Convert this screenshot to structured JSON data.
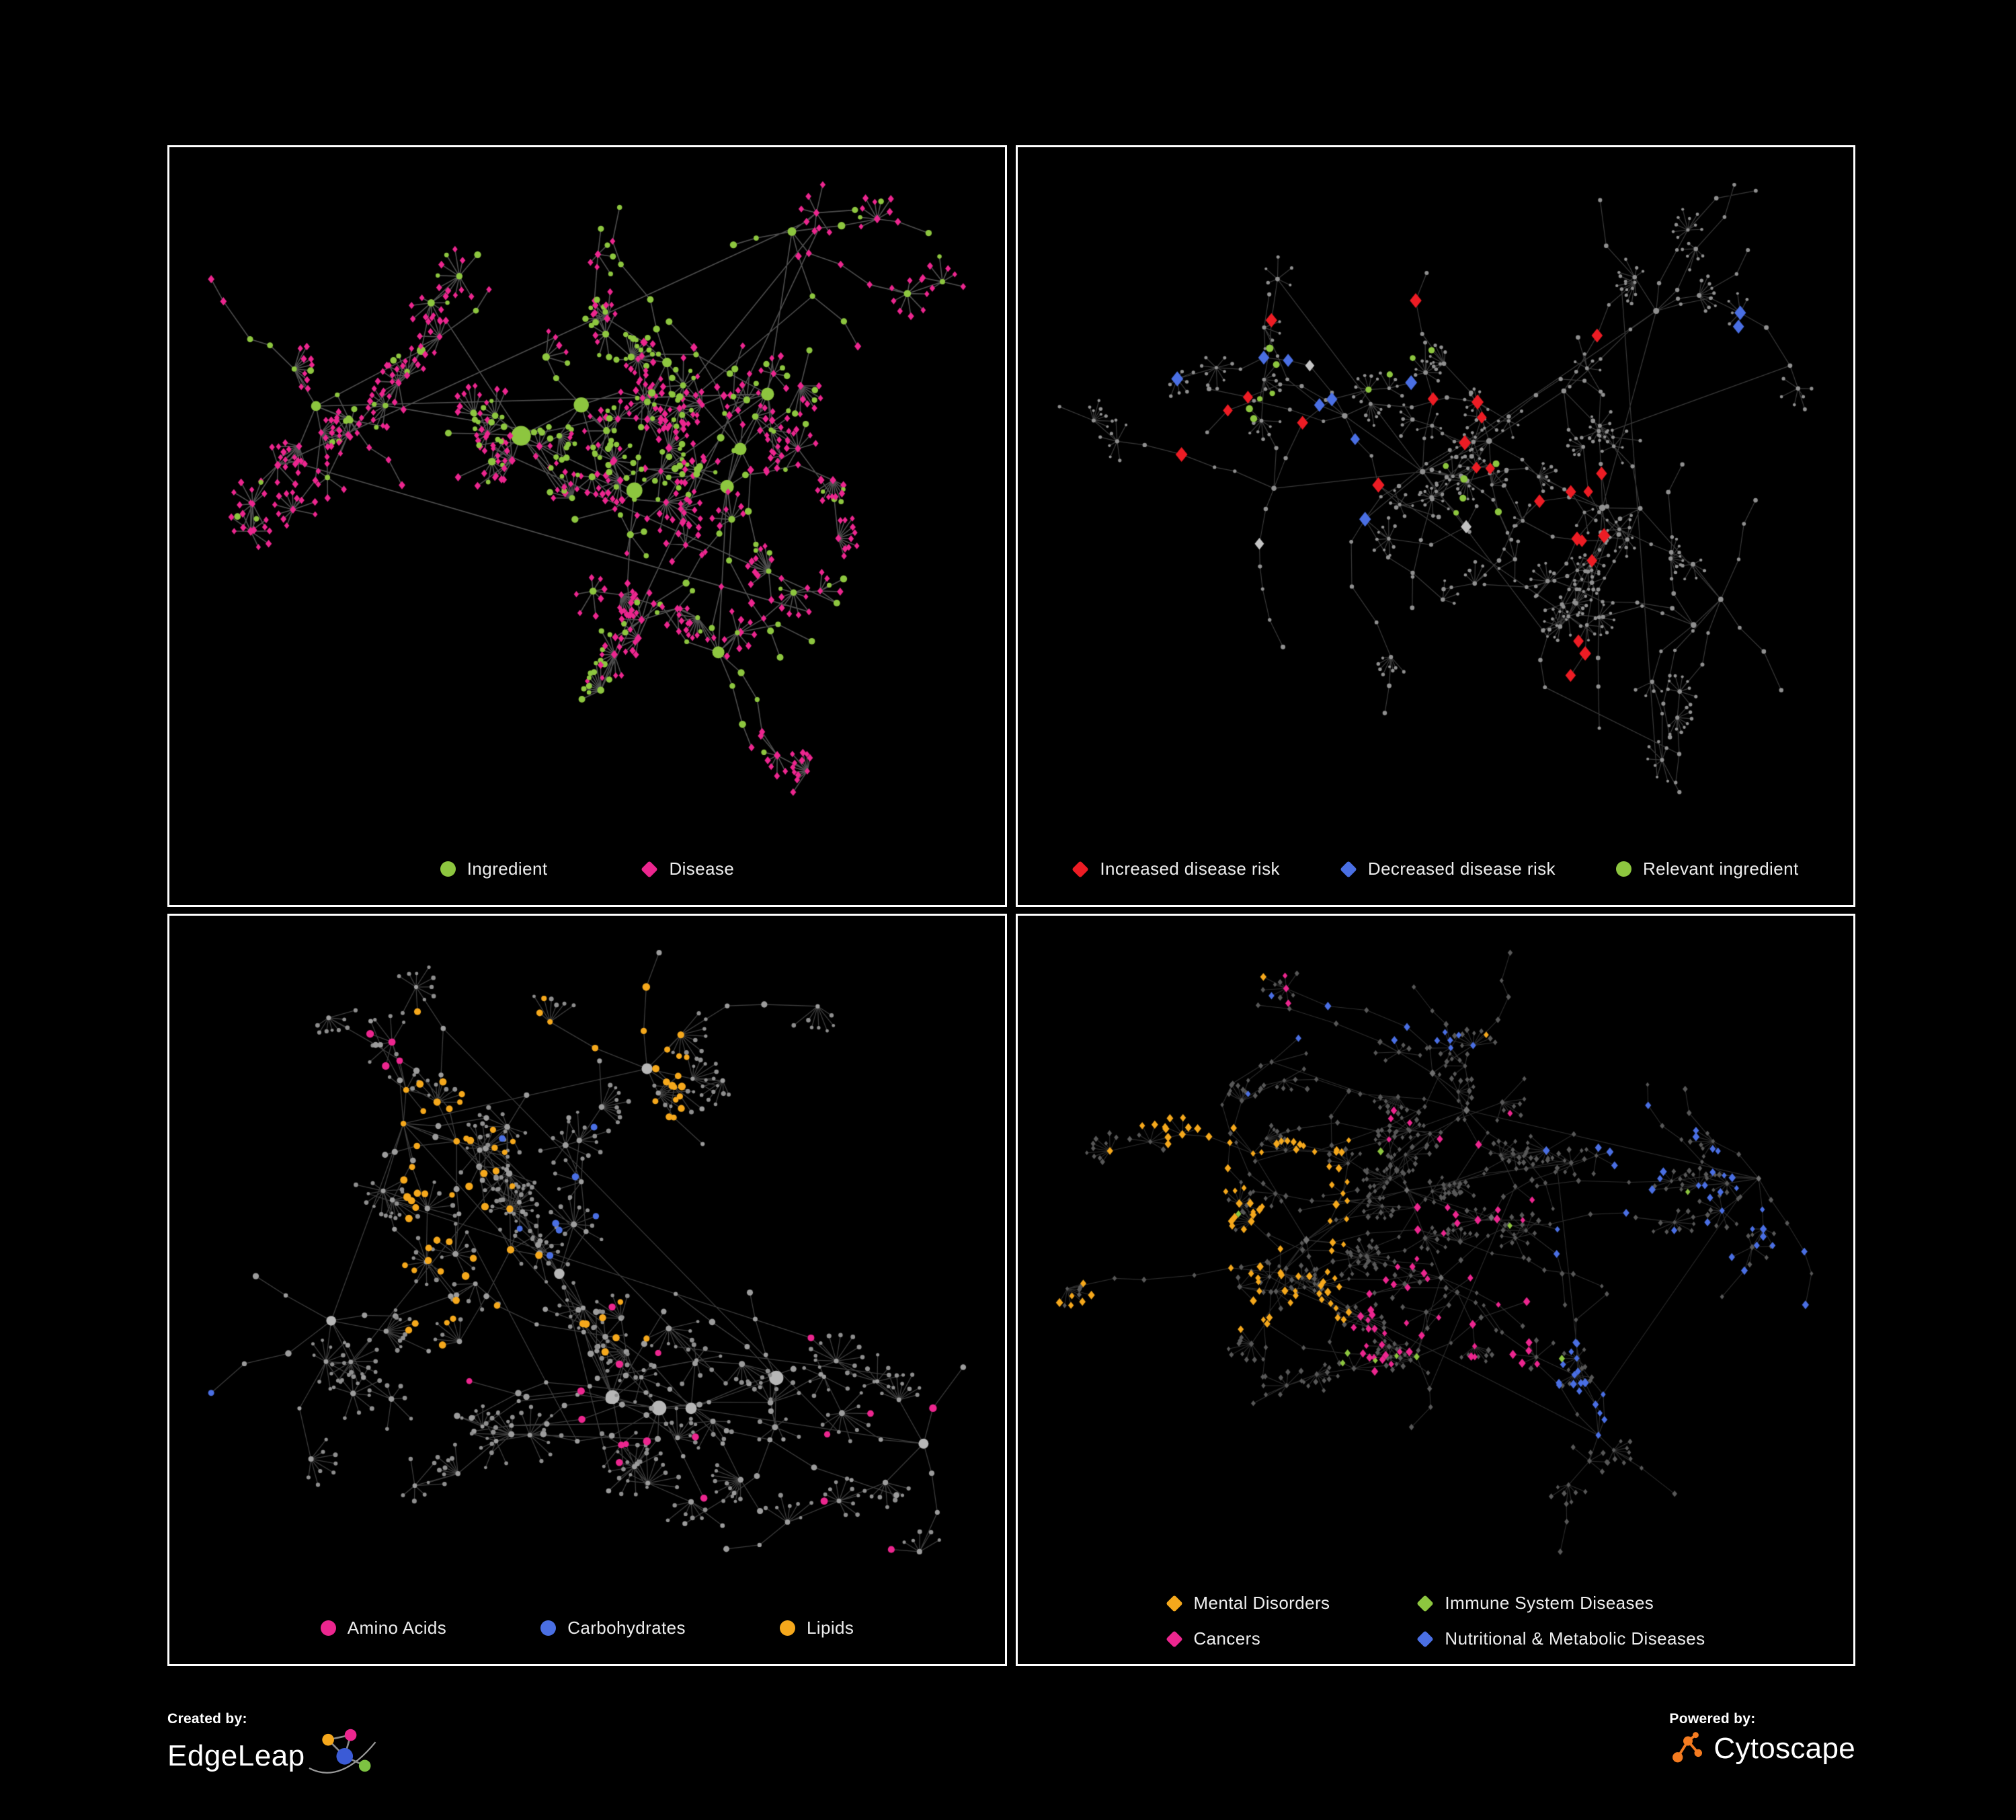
{
  "page": {
    "background": "#000000",
    "panel_border": "#FFFFFF"
  },
  "network_palette": {
    "edge_gray": "#8C8C8C",
    "node_gray": "#909090",
    "node_gray_light": "#C4C4C4",
    "node_gray_dark": "#585858",
    "green": "#8DC63F",
    "pink": "#EC268F",
    "red": "#ED1C24",
    "blue": "#4A6FE3",
    "orange": "#F5A81C"
  },
  "panels": [
    {
      "name": "ingredient-disease-network",
      "style": "ingredient_disease",
      "seed": 7101,
      "legend": {
        "items": [
          {
            "shape": "circle",
            "color": "#8DC63F",
            "label": "Ingredient"
          },
          {
            "shape": "diamond",
            "color": "#EC268F",
            "label": "Disease"
          }
        ]
      }
    },
    {
      "name": "disease-risk-network",
      "style": "disease_risk",
      "seed": 4202,
      "legend": {
        "items": [
          {
            "shape": "diamond",
            "color": "#ED1C24",
            "label": "Increased disease risk"
          },
          {
            "shape": "diamond",
            "color": "#4A6FE3",
            "label": "Decreased disease risk"
          },
          {
            "shape": "circle",
            "color": "#8DC63F",
            "label": "Relevant ingredient"
          }
        ]
      }
    },
    {
      "name": "macronutrient-network",
      "style": "macronutrients",
      "seed": 9303,
      "legend": {
        "items": [
          {
            "shape": "circle",
            "color": "#EC268F",
            "label": "Amino Acids"
          },
          {
            "shape": "circle",
            "color": "#4A6FE3",
            "label": "Carbohydrates"
          },
          {
            "shape": "circle",
            "color": "#F5A81C",
            "label": "Lipids"
          }
        ]
      }
    },
    {
      "name": "disease-category-network",
      "style": "disease_categories",
      "seed": 1404,
      "legend": {
        "items": [
          {
            "shape": "diamond",
            "color": "#F5A81C",
            "label": "Mental Disorders"
          },
          {
            "shape": "diamond",
            "color": "#8DC63F",
            "label": "Immune System Diseases"
          },
          {
            "shape": "diamond",
            "color": "#EC268F",
            "label": "Cancers"
          },
          {
            "shape": "diamond",
            "color": "#4A6FE3",
            "label": "Nutritional & Metabolic Diseases"
          }
        ]
      }
    }
  ],
  "footer": {
    "created_by_label": "Created by:",
    "created_by_brand": "EdgeLeap",
    "powered_by_label": "Powered by:",
    "powered_by_brand": "Cytoscape",
    "edgeleap_logo_colors": [
      "#F5A81C",
      "#EC268F",
      "#3B5BD6",
      "#7DC242"
    ],
    "cytoscape_logo_color": "#F47B20"
  }
}
